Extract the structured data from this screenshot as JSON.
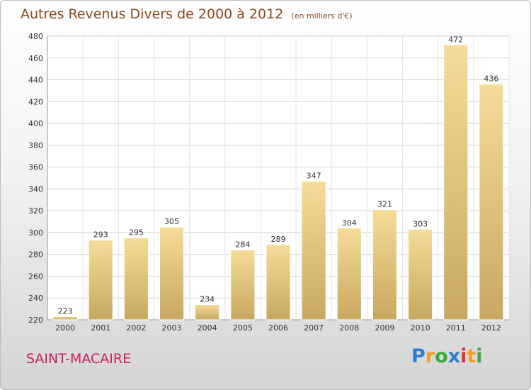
{
  "chart_data": {
    "type": "bar",
    "title": "Autres Revenus Divers de 2000 à 2012",
    "subtitle": "(en milliers d'€)",
    "categories": [
      "2000",
      "2001",
      "2002",
      "2003",
      "2004",
      "2005",
      "2006",
      "2007",
      "2008",
      "2009",
      "2010",
      "2011",
      "2012"
    ],
    "values": [
      223,
      293,
      295,
      305,
      234,
      284,
      289,
      347,
      304,
      321,
      303,
      472,
      436
    ],
    "ylim": [
      220,
      480
    ],
    "yticks": [
      220,
      240,
      260,
      280,
      300,
      320,
      340,
      360,
      380,
      400,
      420,
      440,
      460,
      480
    ],
    "grid": true,
    "bar_color": "#e8c878",
    "xlabel": "",
    "ylabel": ""
  },
  "place_name": "SAINT-MACAIRE",
  "brand": {
    "letters": [
      "P",
      "r",
      "o",
      "x",
      "i",
      "t",
      "i"
    ],
    "colors": [
      "#2a7fd4",
      "#f0a020",
      "#3aaa3a",
      "#2a7fd4",
      "#e03030",
      "#f0a020",
      "#3aaa3a"
    ]
  }
}
